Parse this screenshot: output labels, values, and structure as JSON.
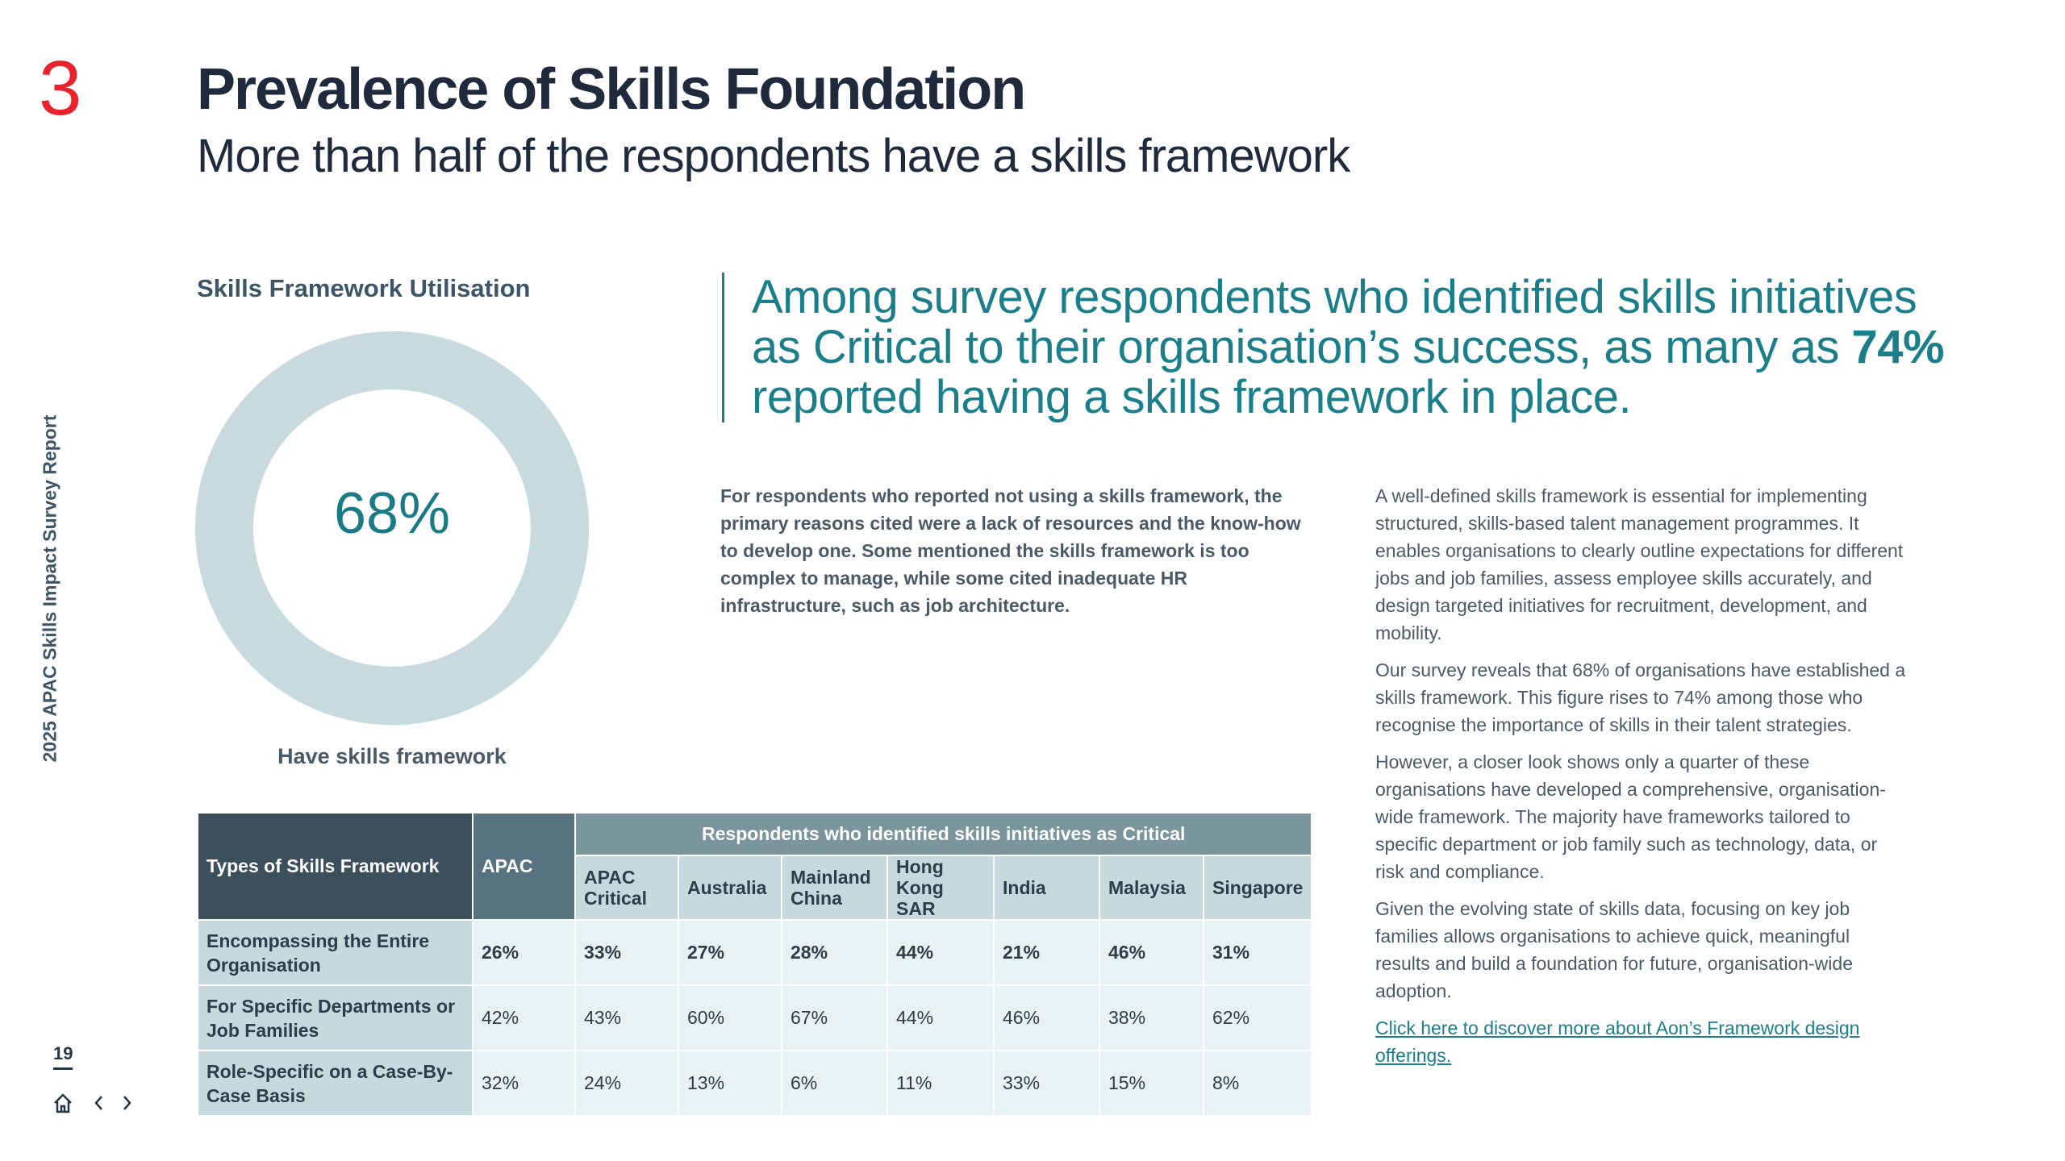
{
  "section_number": "3",
  "header": {
    "title": "Prevalence of Skills Foundation",
    "subtitle": "More than half of the respondents have a skills framework"
  },
  "side_label": "2025 APAC Skills Impact Survey Report",
  "chart_data": {
    "type": "donut",
    "title": "Skills Framework Utilisation",
    "categories": [
      "Have skills framework"
    ],
    "values": [
      68
    ],
    "value_labels": [
      "68%"
    ],
    "color": "#00e3d8",
    "track_color": "#c8dadd"
  },
  "quote": {
    "before": "Among survey respondents who identified skills initiatives as Critical to their organisation’s success, as many as ",
    "highlight": "74%",
    "after": " reported having a skills framework in place."
  },
  "note": "For respondents who reported not using a skills framework, the primary reasons cited were a lack of resources and the know-how to develop one. Some mentioned the skills framework is too complex to manage, while some cited inadequate HR infrastructure, such as job architecture.",
  "body": [
    "A well-defined skills framework is essential for implementing structured, skills-based talent management programmes. It enables organisations to clearly outline expectations for different jobs and job families, assess employee skills accurately, and design targeted initiatives for recruitment, development, and mobility.",
    "Our survey reveals that 68% of organisations have established a skills framework. This figure rises to 74% among those who recognise the importance of skills in their talent strategies.",
    "However, a closer look shows only a quarter of these organisations have developed a comprehensive, organisation-wide framework. The majority have frameworks tailored to specific department or job family such as technology, data, or risk and compliance.",
    "Given the evolving state of skills data, focusing on key job families allows organisations to achieve quick, meaningful results and build a foundation for future, organisation-wide adoption."
  ],
  "link": "Click here to discover more about Aon’s Framework design offerings.",
  "table": {
    "corner": "Types of Skills Framework",
    "apac": "APAC",
    "group": "Respondents who identified skills initiatives as Critical",
    "columns": [
      "APAC Critical",
      "Australia",
      "Mainland China",
      "Hong Kong SAR",
      "India",
      "Malaysia",
      "Singapore"
    ],
    "rows": [
      {
        "label": "Encompassing the Entire Organisation",
        "cells": [
          "26%",
          "33%",
          "27%",
          "28%",
          "44%",
          "21%",
          "46%",
          "31%"
        ]
      },
      {
        "label": "For Specific Departments or Job Families",
        "cells": [
          "42%",
          "43%",
          "60%",
          "67%",
          "44%",
          "46%",
          "38%",
          "62%"
        ]
      },
      {
        "label": "Role-Specific on a Case-By-Case Basis",
        "cells": [
          "32%",
          "24%",
          "13%",
          "6%",
          "11%",
          "33%",
          "15%",
          "8%"
        ]
      }
    ]
  },
  "page_number": "19"
}
